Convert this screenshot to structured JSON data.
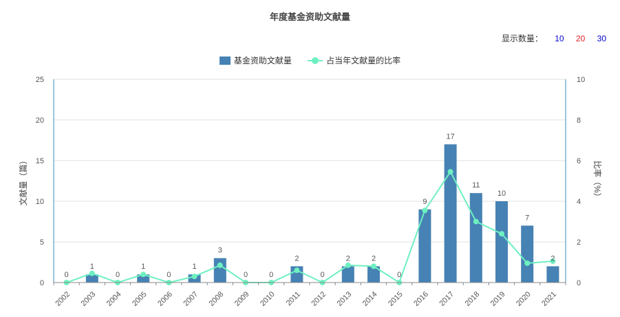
{
  "display_count": {
    "label": "显示数量：",
    "options": [
      {
        "text": "10",
        "color": "#0000cc"
      },
      {
        "text": "20",
        "color": "#e02020"
      },
      {
        "text": "30",
        "color": "#0000cc"
      }
    ]
  },
  "colors": {
    "bar": "#4682b4",
    "line": "#6ef0c0",
    "axis": "#3a8ab8",
    "grid": "#e0e0e0"
  },
  "chart_data": {
    "type": "bar",
    "title": "年度基金资助文献量",
    "categories": [
      "2002",
      "2003",
      "2004",
      "2005",
      "2006",
      "2007",
      "2008",
      "2009",
      "2010",
      "2011",
      "2012",
      "2013",
      "2014",
      "2015",
      "2016",
      "2017",
      "2018",
      "2019",
      "2020",
      "2021"
    ],
    "series": [
      {
        "name": "基金资助文献量",
        "type": "bar",
        "axis": "left",
        "values": [
          0,
          1,
          0,
          1,
          0,
          1,
          3,
          0,
          0,
          2,
          0,
          2,
          2,
          0,
          9,
          17,
          11,
          10,
          7,
          2
        ]
      },
      {
        "name": "占当年文献量的比率",
        "type": "line",
        "axis": "right",
        "values": [
          0,
          0.45,
          0,
          0.4,
          0,
          0.3,
          0.85,
          0,
          0,
          0.6,
          0,
          0.85,
          0.8,
          0,
          3.55,
          5.45,
          3.0,
          2.4,
          0.95,
          1.05
        ]
      }
    ],
    "ylabel": "文献量（篇）",
    "y2label": "比率（%）",
    "ylim": [
      0,
      25
    ],
    "y2lim": [
      0,
      10
    ],
    "yticks": [
      "0",
      "5",
      "10",
      "15",
      "20",
      "25"
    ],
    "y2ticks": [
      "0",
      "2",
      "4",
      "6",
      "8",
      "10"
    ],
    "grid": true,
    "legend": "top-center"
  }
}
